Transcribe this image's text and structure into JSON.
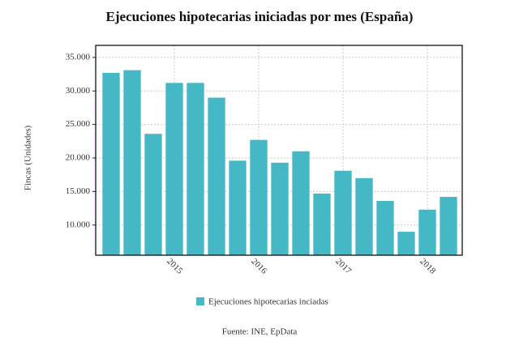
{
  "chart_data": {
    "type": "bar",
    "title": "Ejecuciones hipotecarias iniciadas por mes (España)",
    "y_label": "Fincas (Unidades)",
    "source": "Fuente: INE, EpData",
    "categories": [
      null,
      null,
      null,
      "2015",
      null,
      null,
      null,
      "2016",
      null,
      null,
      null,
      "2017",
      null,
      null,
      null,
      "2018",
      null
    ],
    "series": [
      {
        "name": "Ejecuciones hipotecarias inciadas",
        "color": "#45b8c6",
        "values": [
          32700,
          33100,
          23600,
          31200,
          31200,
          29000,
          19600,
          22700,
          19300,
          21000,
          14700,
          18100,
          17000,
          13600,
          9000,
          12300,
          14200
        ]
      }
    ],
    "ylim": [
      5500,
      36800
    ],
    "yticks": [
      {
        "value": 10000,
        "label": "10.000"
      },
      {
        "value": 15000,
        "label": "15.000"
      },
      {
        "value": 20000,
        "label": "20.000"
      },
      {
        "value": 25000,
        "label": "25.000"
      },
      {
        "value": 30000,
        "label": "30.000"
      },
      {
        "value": 35000,
        "label": "35.000"
      }
    ],
    "grid": true
  }
}
